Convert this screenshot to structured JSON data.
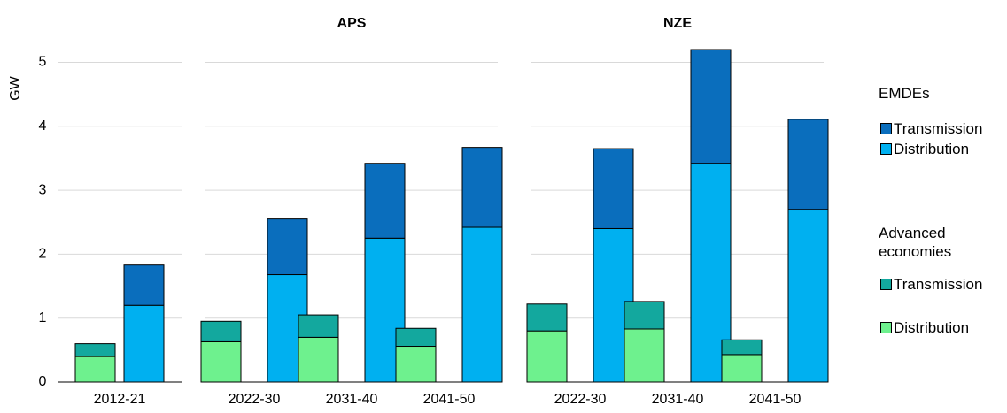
{
  "chart_data": {
    "type": "bar",
    "stacked": true,
    "ylabel": "GW",
    "ylim": [
      0,
      5.2
    ],
    "yticks": [
      0,
      1,
      2,
      3,
      4,
      5
    ],
    "grid": true,
    "panels": [
      {
        "categories": [
          "2012-21"
        ]
      },
      {
        "title": "APS",
        "categories": [
          "2022-30",
          "2031-40",
          "2041-50"
        ]
      },
      {
        "title": "NZE",
        "categories": [
          "2022-30",
          "2031-40",
          "2041-50"
        ]
      }
    ],
    "groups": [
      {
        "name": "EMDEs",
        "series": [
          {
            "name": "Transmission",
            "color": "#0a6ebd",
            "values": [
              0.63,
              0.87,
              1.17,
              1.25,
              1.25,
              1.78,
              1.41
            ]
          },
          {
            "name": "Distribution",
            "color": "#00b0f0",
            "values": [
              1.2,
              1.68,
              2.25,
              2.42,
              2.4,
              3.42,
              2.7
            ]
          }
        ]
      },
      {
        "name": "Advanced economies",
        "series": [
          {
            "name": "Transmission",
            "color": "#13a89e",
            "values": [
              0.2,
              0.32,
              0.35,
              0.28,
              0.42,
              0.43,
              0.23
            ]
          },
          {
            "name": "Distribution",
            "color": "#6ef18e",
            "values": [
              0.4,
              0.63,
              0.7,
              0.56,
              0.8,
              0.83,
              0.43
            ]
          }
        ]
      }
    ]
  }
}
